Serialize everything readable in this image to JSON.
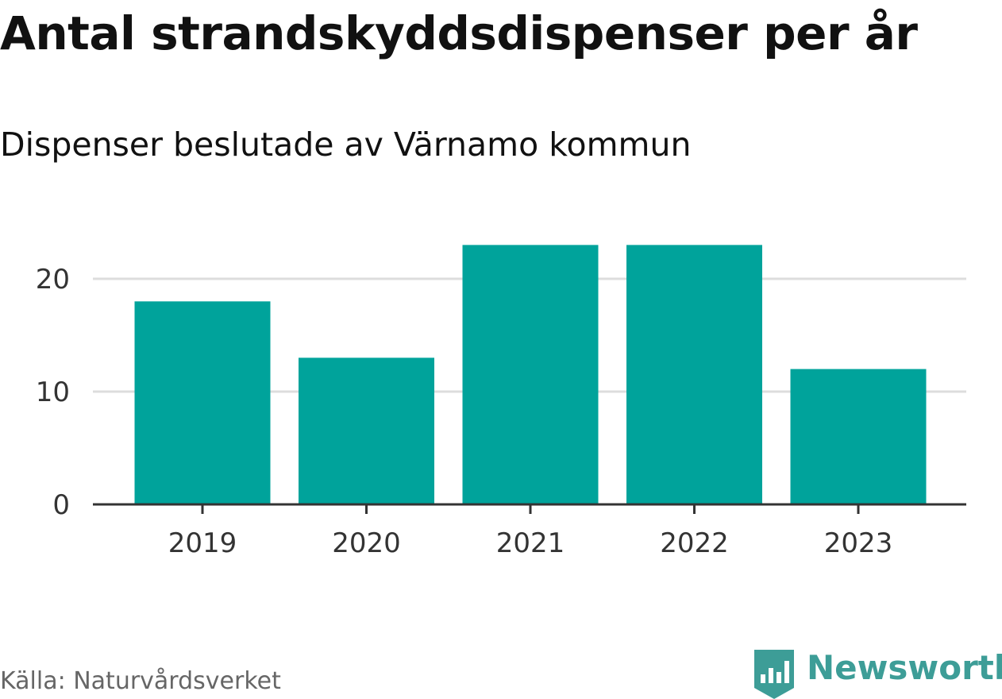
{
  "title": "Antal strandskyddsdispenser per år",
  "subtitle": "Dispenser beslutade av Värnamo kommun",
  "source": "Källa: Naturvårdsverket",
  "brand": {
    "name": "Newsworthy",
    "icon": "newsworthy-logo-icon",
    "color": "#3d9d97"
  },
  "chart_data": {
    "type": "bar",
    "categories": [
      "2019",
      "2020",
      "2021",
      "2022",
      "2023"
    ],
    "values": [
      18,
      13,
      23,
      23,
      12
    ],
    "title": "Antal strandskyddsdispenser per år",
    "subtitle": "Dispenser beslutade av Värnamo kommun",
    "xlabel": "",
    "ylabel": "",
    "ylim": [
      0,
      25
    ],
    "yticks": [
      0,
      10,
      20
    ],
    "ytick_labels": [
      "0",
      "10",
      "20"
    ],
    "grid": true,
    "legend": "none",
    "bar_color": "#00a39b",
    "grid_color": "#dddddd",
    "axis_color": "#333333"
  }
}
